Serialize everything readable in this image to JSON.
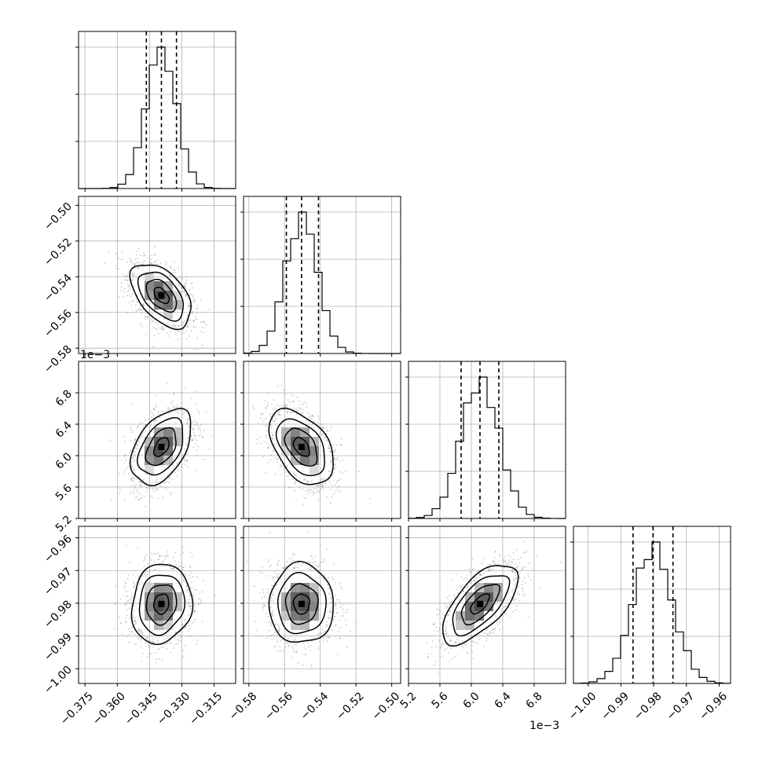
{
  "chart_data": {
    "type": "corner",
    "parameters": [
      {
        "index": 0,
        "range": [
          -0.378,
          -0.305
        ],
        "ticks": [
          "−0.375",
          "−0.360",
          "−0.345",
          "−0.330",
          "−0.315"
        ],
        "tick_values": [
          -0.375,
          -0.36,
          -0.345,
          -0.33,
          -0.315
        ],
        "quantiles": [
          -0.3465,
          -0.3395,
          -0.3325
        ],
        "mean": -0.3395,
        "sd": 0.007,
        "exponent_label": ""
      },
      {
        "index": 1,
        "range": [
          -0.583,
          -0.495
        ],
        "ticks": [
          "−0.58",
          "−0.56",
          "−0.54",
          "−0.52",
          "−0.50"
        ],
        "tick_values": [
          -0.58,
          -0.56,
          -0.54,
          -0.52,
          -0.5
        ],
        "quantiles": [
          -0.559,
          -0.5505,
          -0.541
        ],
        "mean": -0.5505,
        "sd": 0.009,
        "exponent_label": ""
      },
      {
        "index": 2,
        "range": [
          5.2,
          7.2
        ],
        "ticks": [
          "5.2",
          "5.6",
          "6.0",
          "6.4",
          "6.8"
        ],
        "tick_values": [
          5.2,
          5.6,
          6.0,
          6.4,
          6.8
        ],
        "quantiles": [
          5.87,
          6.11,
          6.35
        ],
        "mean": 6.11,
        "sd": 0.24,
        "exponent_label": "1e−3"
      },
      {
        "index": 3,
        "range": [
          -1.0045,
          -0.9565
        ],
        "ticks": [
          "−1.00",
          "−0.99",
          "−0.98",
          "−0.97",
          "−0.96"
        ],
        "tick_values": [
          -1.0,
          -0.99,
          -0.98,
          -0.97,
          -0.96
        ],
        "quantiles": [
          -0.9863,
          -0.9802,
          -0.9741
        ],
        "mean": -0.9802,
        "sd": 0.0061,
        "exponent_label": ""
      }
    ],
    "correlations": [
      {
        "pair": [
          1,
          0
        ],
        "rho": -0.5
      },
      {
        "pair": [
          2,
          0
        ],
        "rho": 0.45
      },
      {
        "pair": [
          2,
          1
        ],
        "rho": -0.45
      },
      {
        "pair": [
          3,
          0
        ],
        "rho": 0.1
      },
      {
        "pair": [
          3,
          1
        ],
        "rho": 0.0
      },
      {
        "pair": [
          3,
          2
        ],
        "rho": 0.65
      }
    ],
    "contour_sigma_levels": [
      0.5,
      1.0,
      1.5,
      2.0
    ],
    "histogram_bins": 20,
    "grid": true
  }
}
